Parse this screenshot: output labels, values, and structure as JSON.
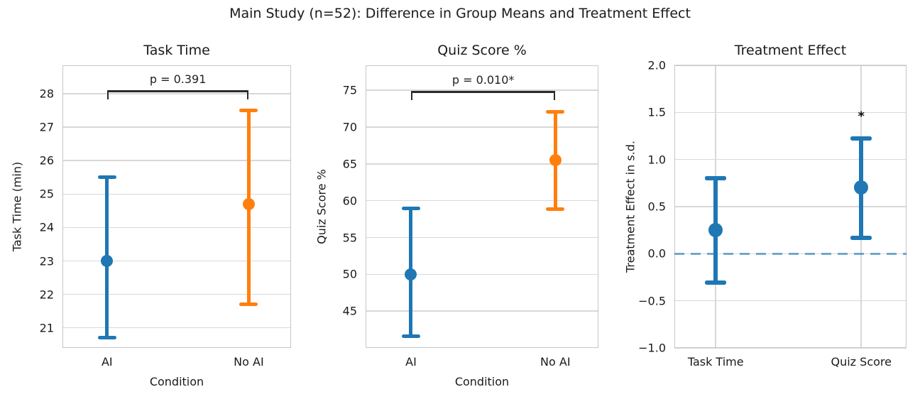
{
  "figure": {
    "title": "Main Study (n=52): Difference in Group Means and Treatment Effect"
  },
  "palette": {
    "blue": "#1f77b4",
    "orange": "#ff7f0e",
    "zero_line": "rgba(31,119,180,0.6)",
    "grid": "#d8d8d8",
    "spine": "#c7c7c7",
    "bracket": "#2b2b2b",
    "text": "#1a1a1a"
  },
  "chart_data": [
    {
      "type": "errorbar",
      "title": "Task Time",
      "xlabel": "Condition",
      "ylabel": "Task Time (min)",
      "ylim": [
        20.4,
        28.85
      ],
      "yticks": [
        21,
        22,
        23,
        24,
        25,
        26,
        27,
        28
      ],
      "ytick_labels": [
        "21",
        "22",
        "23",
        "24",
        "25",
        "26",
        "27",
        "28"
      ],
      "grid": "horizontal",
      "categories": [
        "AI",
        "No AI"
      ],
      "points": [
        {
          "category": "AI",
          "mean": 23.0,
          "ci_low": 20.7,
          "ci_high": 25.5,
          "color": "blue"
        },
        {
          "category": "No AI",
          "mean": 24.7,
          "ci_low": 21.7,
          "ci_high": 27.5,
          "color": "orange"
        }
      ],
      "significance": {
        "label": "p = 0.391",
        "bracket_y": 28.1
      }
    },
    {
      "type": "errorbar",
      "title": "Quiz Score %",
      "xlabel": "Condition",
      "ylabel": "Quiz Score %",
      "ylim": [
        40.0,
        78.4
      ],
      "yticks": [
        45,
        50,
        55,
        60,
        65,
        70,
        75
      ],
      "ytick_labels": [
        "45",
        "50",
        "55",
        "60",
        "65",
        "70",
        "75"
      ],
      "grid": "horizontal",
      "categories": [
        "AI",
        "No AI"
      ],
      "points": [
        {
          "category": "AI",
          "mean": 50.0,
          "ci_low": 41.6,
          "ci_high": 59.0,
          "color": "blue"
        },
        {
          "category": "No AI",
          "mean": 65.5,
          "ci_low": 58.9,
          "ci_high": 72.1,
          "color": "orange"
        }
      ],
      "significance": {
        "label": "p = 0.010*",
        "bracket_y": 74.9
      }
    },
    {
      "type": "errorbar",
      "title": "Treatment Effect",
      "xlabel": "",
      "ylabel": "Treatment Effect in s.d.",
      "ylim": [
        -1.0,
        2.0
      ],
      "yticks": [
        -1.0,
        -0.5,
        0.0,
        0.5,
        1.0,
        1.5,
        2.0
      ],
      "ytick_labels": [
        "−1.0",
        "−0.5",
        "0.0",
        "0.5",
        "1.0",
        "1.5",
        "2.0"
      ],
      "grid": "both",
      "categories": [
        "Task Time",
        "Quiz Score"
      ],
      "zero_line": {
        "y": 0.0,
        "style": "dashed"
      },
      "points": [
        {
          "category": "Task Time",
          "mean": 0.25,
          "ci_low": -0.31,
          "ci_high": 0.8,
          "color": "blue"
        },
        {
          "category": "Quiz Score",
          "mean": 0.7,
          "ci_low": 0.17,
          "ci_high": 1.22,
          "color": "blue",
          "annotation": {
            "text": "*",
            "y": 1.46
          }
        }
      ]
    }
  ]
}
